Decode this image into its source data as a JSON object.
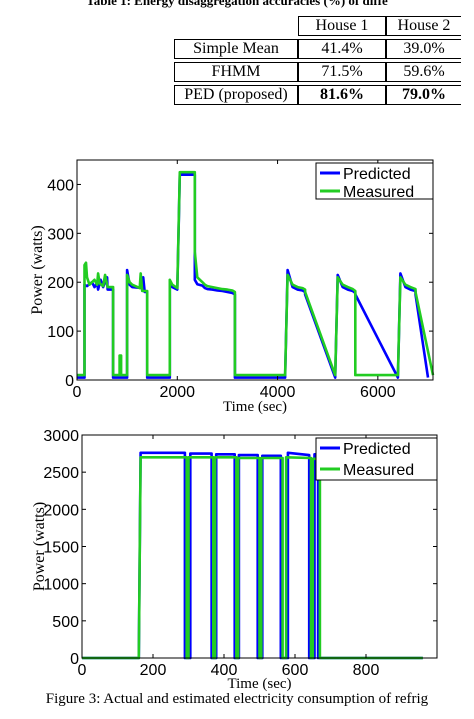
{
  "table": {
    "title": "Table 1: Energy disaggregation accuracies (%) of diffe",
    "headers": [
      "",
      "House 1",
      "House 2"
    ],
    "rows": [
      {
        "method": "Simple Mean",
        "house1": "41.4%",
        "house2": "39.0%",
        "bold": false
      },
      {
        "method": "FHMM",
        "house1": "71.5%",
        "house2": "59.6%",
        "bold": false
      },
      {
        "method": "PED (proposed)",
        "house1": "81.6%",
        "house2": "79.0%",
        "bold": true
      }
    ]
  },
  "chart_data": [
    {
      "type": "line",
      "xlabel": "Time (sec)",
      "ylabel": "Power (watts)",
      "xlim": [
        0,
        7100
      ],
      "ylim": [
        0,
        450
      ],
      "xticks": [
        0,
        2000,
        4000,
        6000
      ],
      "yticks": [
        0,
        100,
        200,
        300,
        400
      ],
      "legend_position": "top-right",
      "grid": false,
      "series": [
        {
          "name": "Predicted",
          "color": "#0000ff",
          "x": [
            0,
            150,
            150,
            200,
            300,
            350,
            400,
            420,
            470,
            520,
            600,
            610,
            720,
            720,
            900,
            900,
            1000,
            1000,
            1050,
            1100,
            1300,
            1320,
            1350,
            1400,
            1400,
            1850,
            1850,
            1900,
            2000,
            2050,
            2050,
            2350,
            2350,
            2400,
            2500,
            2550,
            2600,
            2700,
            2800,
            2900,
            3000,
            3100,
            3150,
            3150,
            4150,
            4150,
            4200,
            4300,
            4400,
            4500,
            4550,
            4550,
            5150,
            5150,
            5200,
            5300,
            5400,
            5500,
            5550,
            5550,
            6400,
            6400,
            6450,
            6550,
            6650,
            6750,
            6750,
            7000
          ],
          "y": [
            5,
            5,
            195,
            192,
            200,
            190,
            198,
            185,
            205,
            190,
            210,
            185,
            185,
            5,
            5,
            5,
            5,
            225,
            195,
            190,
            188,
            210,
            180,
            180,
            5,
            5,
            200,
            190,
            185,
            420,
            420,
            420,
            205,
            196,
            193,
            188,
            186,
            185,
            183,
            182,
            180,
            178,
            175,
            5,
            5,
            5,
            225,
            190,
            185,
            183,
            180,
            175,
            5,
            5,
            215,
            190,
            185,
            182,
            178,
            175,
            5,
            5,
            218,
            190,
            185,
            182,
            175,
            5
          ]
        },
        {
          "name": "Measured",
          "color": "#22cc22",
          "x": [
            0,
            150,
            150,
            180,
            200,
            250,
            300,
            350,
            400,
            420,
            450,
            520,
            560,
            600,
            610,
            720,
            720,
            850,
            850,
            880,
            880,
            900,
            900,
            1000,
            1000,
            1050,
            1100,
            1250,
            1270,
            1300,
            1350,
            1400,
            1400,
            1850,
            1850,
            1900,
            2000,
            2050,
            2050,
            2350,
            2350,
            2400,
            2500,
            2550,
            2600,
            2700,
            2800,
            2900,
            3000,
            3100,
            3150,
            3150,
            4150,
            4150,
            4200,
            4300,
            4400,
            4500,
            4550,
            4550,
            5150,
            5150,
            5200,
            5300,
            5400,
            5500,
            5550,
            5550,
            6400,
            6400,
            6450,
            6550,
            6650,
            6750,
            6750,
            7100
          ],
          "y": [
            10,
            10,
            235,
            240,
            210,
            195,
            200,
            205,
            195,
            218,
            198,
            192,
            215,
            195,
            190,
            190,
            10,
            10,
            50,
            50,
            10,
            10,
            10,
            10,
            215,
            200,
            195,
            188,
            218,
            182,
            182,
            182,
            10,
            10,
            205,
            195,
            188,
            425,
            425,
            425,
            262,
            210,
            200,
            195,
            192,
            190,
            188,
            186,
            185,
            183,
            180,
            10,
            10,
            10,
            215,
            195,
            190,
            188,
            185,
            180,
            10,
            10,
            210,
            195,
            190,
            186,
            182,
            10,
            10,
            10,
            210,
            195,
            190,
            186,
            180,
            10
          ]
        }
      ]
    },
    {
      "type": "line",
      "xlabel": "Time (sec)",
      "ylabel": "Power (watts)",
      "xlim": [
        0,
        1000
      ],
      "ylim": [
        0,
        3000
      ],
      "xticks": [
        0,
        200,
        400,
        600,
        800
      ],
      "yticks": [
        0,
        500,
        1000,
        1500,
        2000,
        2500,
        3000
      ],
      "legend_position": "top-right",
      "grid": false,
      "series": [
        {
          "name": "Predicted",
          "color": "#0000ff",
          "x": [
            0,
            160,
            165,
            290,
            290,
            305,
            305,
            365,
            365,
            378,
            378,
            430,
            430,
            442,
            442,
            495,
            495,
            508,
            508,
            560,
            560,
            580,
            580,
            640,
            640,
            655,
            655,
            665,
            665,
            690,
            690,
            960
          ],
          "y": [
            0,
            0,
            2760,
            2760,
            0,
            0,
            2750,
            2750,
            0,
            0,
            2740,
            2740,
            0,
            0,
            2730,
            2730,
            0,
            0,
            2720,
            2720,
            0,
            0,
            2760,
            2730,
            0,
            0,
            2740,
            2740,
            0,
            0,
            0,
            0
          ]
        },
        {
          "name": "Measured",
          "color": "#22cc22",
          "x": [
            0,
            160,
            165,
            295,
            295,
            300,
            300,
            370,
            370,
            375,
            375,
            435,
            435,
            440,
            440,
            500,
            500,
            505,
            505,
            565,
            565,
            575,
            575,
            645,
            645,
            650,
            650,
            670,
            670,
            690,
            690,
            960
          ],
          "y": [
            0,
            0,
            2700,
            2700,
            0,
            0,
            2700,
            2700,
            0,
            0,
            2700,
            2700,
            0,
            0,
            2690,
            2690,
            0,
            0,
            2690,
            2690,
            0,
            0,
            2700,
            2690,
            0,
            0,
            2680,
            2680,
            0,
            0,
            0,
            0
          ]
        }
      ]
    }
  ],
  "caption": "Figure 3: Actual and estimated electricity consumption of refrig"
}
